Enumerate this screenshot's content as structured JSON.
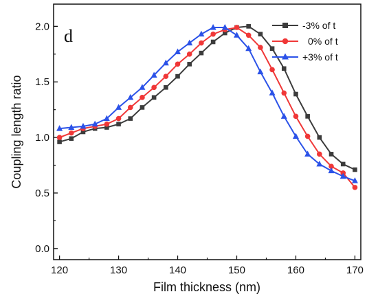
{
  "chart_data": {
    "type": "line",
    "panel_label": "d",
    "xlabel": "Film thickness (nm)",
    "ylabel": "Coupling length ratio",
    "xlim": [
      119,
      171
    ],
    "ylim": [
      -0.1,
      2.2
    ],
    "xticks": [
      {
        "value": 120,
        "label": "120"
      },
      {
        "value": 130,
        "label": "130"
      },
      {
        "value": 140,
        "label": "140"
      },
      {
        "value": 150,
        "label": "150"
      },
      {
        "value": 160,
        "label": "160"
      },
      {
        "value": 170,
        "label": "170"
      }
    ],
    "yticks": [
      {
        "value": 0.0,
        "label": "0.0"
      },
      {
        "value": 0.5,
        "label": "0.5"
      },
      {
        "value": 1.0,
        "label": "1.0"
      },
      {
        "value": 1.5,
        "label": "1.5"
      },
      {
        "value": 2.0,
        "label": "2.0"
      }
    ],
    "legend_position": "top-right",
    "grid": false,
    "series": [
      {
        "name": "-3% of t",
        "color": "#3c3c3c",
        "marker": "square",
        "x": [
          120,
          122,
          124,
          126,
          128,
          130,
          132,
          134,
          136,
          138,
          140,
          142,
          144,
          146,
          148,
          150,
          152,
          154,
          156,
          158,
          160,
          162,
          164,
          166,
          168,
          170
        ],
        "y": [
          0.96,
          0.99,
          1.05,
          1.08,
          1.09,
          1.12,
          1.17,
          1.27,
          1.36,
          1.45,
          1.55,
          1.66,
          1.76,
          1.86,
          1.94,
          1.99,
          2.0,
          1.93,
          1.8,
          1.62,
          1.39,
          1.19,
          1.0,
          0.85,
          0.76,
          0.71
        ]
      },
      {
        "name": "0% of t",
        "color": "#f03737",
        "marker": "circle",
        "x": [
          120,
          122,
          124,
          126,
          128,
          130,
          132,
          134,
          136,
          138,
          140,
          142,
          144,
          146,
          148,
          150,
          152,
          154,
          156,
          158,
          160,
          162,
          164,
          166,
          168,
          170
        ],
        "y": [
          1.0,
          1.04,
          1.08,
          1.1,
          1.12,
          1.17,
          1.27,
          1.36,
          1.45,
          1.55,
          1.66,
          1.75,
          1.85,
          1.93,
          1.97,
          1.99,
          1.92,
          1.81,
          1.61,
          1.4,
          1.19,
          1.01,
          0.85,
          0.74,
          0.68,
          0.55
        ]
      },
      {
        "name": "+3% of t",
        "color": "#2b52e8",
        "marker": "triangle",
        "x": [
          120,
          122,
          124,
          126,
          128,
          130,
          132,
          134,
          136,
          138,
          140,
          142,
          144,
          146,
          148,
          150,
          152,
          154,
          156,
          158,
          160,
          162,
          164,
          166,
          168,
          170
        ],
        "y": [
          1.08,
          1.09,
          1.1,
          1.12,
          1.17,
          1.27,
          1.36,
          1.45,
          1.56,
          1.67,
          1.77,
          1.85,
          1.93,
          1.99,
          1.99,
          1.92,
          1.8,
          1.59,
          1.4,
          1.19,
          1.01,
          0.85,
          0.76,
          0.7,
          0.65,
          0.61
        ]
      }
    ]
  }
}
